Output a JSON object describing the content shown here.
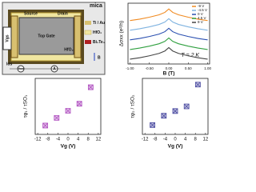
{
  "schematic": {
    "mica": "mica",
    "source": "Source",
    "drain": "Drain",
    "top_gate": "Top Gate",
    "hfo2_side": "HfO₂",
    "vgs": "Vgs",
    "vxx": "Vxx",
    "ammeter": "A",
    "ids": "Ids",
    "legend": [
      "Ti / Au",
      "HfO₂",
      "Bi₂Te₃"
    ],
    "field": "B"
  },
  "chart_data": [
    {
      "type": "line",
      "xlabel": "B (T)",
      "ylabel": "Δσxx (e²/h)",
      "annotation": "T = 2 K",
      "x": [
        -1,
        -0.75,
        -0.5,
        -0.25,
        -0.1,
        0,
        0.1,
        0.25,
        0.5,
        0.75,
        1
      ],
      "xlim": [
        -1.05,
        1.05
      ],
      "xticks": [
        {
          "value": -1,
          "label": "-1.00"
        },
        {
          "value": -0.5,
          "label": "-0.50"
        },
        {
          "value": 0,
          "label": "0.00"
        },
        {
          "value": 0.5,
          "label": "0.50"
        },
        {
          "value": 1,
          "label": "1.00"
        }
      ],
      "ylim": [
        -0.5,
        5.8
      ],
      "legend": "upper right",
      "series": [
        {
          "name": "-9 V",
          "color": "#f08a20",
          "values": [
            4,
            4.15,
            4.35,
            4.6,
            4.85,
            5.2,
            4.85,
            4.6,
            4.35,
            4.15,
            4
          ]
        },
        {
          "name": "-4.5 V",
          "color": "#7fb3e0",
          "values": [
            3,
            3.15,
            3.35,
            3.6,
            3.85,
            4.2,
            3.85,
            3.6,
            3.35,
            3.15,
            3
          ]
        },
        {
          "name": "0 V",
          "color": "#2a4fb0",
          "values": [
            2,
            2.15,
            2.35,
            2.6,
            2.85,
            3.2,
            2.85,
            2.6,
            2.35,
            2.15,
            2
          ]
        },
        {
          "name": "4.5 V",
          "color": "#30a040",
          "values": [
            1,
            1.15,
            1.35,
            1.6,
            1.85,
            2.2,
            1.85,
            1.6,
            1.35,
            1.15,
            1
          ]
        },
        {
          "name": "9 V",
          "color": "#444444",
          "values": [
            0,
            0.15,
            0.35,
            0.6,
            0.85,
            1.2,
            0.85,
            0.6,
            0.35,
            0.15,
            0
          ]
        }
      ]
    },
    {
      "type": "scatter",
      "xlabel": "Vg (V)",
      "ylabel": "τφ₁ / τSO₁",
      "color": "#b050c0",
      "x": [
        -9,
        -4.5,
        0,
        4.5,
        9
      ],
      "values": [
        2.5,
        3.8,
        5.0,
        6.2,
        9.0
      ],
      "xlim": [
        -13,
        13
      ],
      "xticks": [
        -12,
        -8,
        -4,
        0,
        4,
        8,
        12
      ],
      "ylim": [
        1,
        10.5
      ]
    },
    {
      "type": "scatter",
      "xlabel": "Vg (V)",
      "ylabel": "τφ₂ / τSO₂",
      "color": "#4a4aa0",
      "x": [
        -9,
        -4.5,
        0,
        4.5,
        9
      ],
      "values": [
        22,
        25,
        26.5,
        28,
        35
      ],
      "xlim": [
        -13,
        13
      ],
      "xticks": [
        -12,
        -8,
        -4,
        0,
        4,
        8,
        12
      ],
      "ylim": [
        19,
        37
      ]
    }
  ]
}
